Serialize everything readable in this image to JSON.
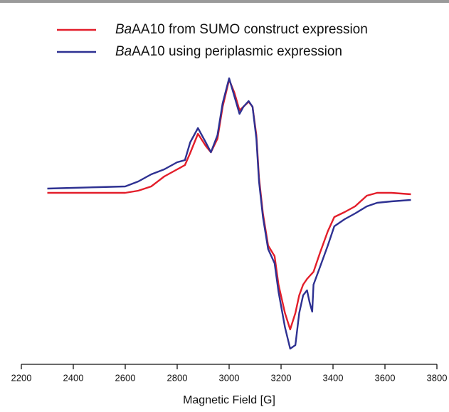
{
  "chart_data": {
    "type": "line",
    "xlabel": "Magnetic Field [G]",
    "xlim": [
      2200,
      3800
    ],
    "xticks": [
      2200,
      2400,
      2600,
      2800,
      3000,
      3200,
      3400,
      3600,
      3800
    ],
    "ylim": [
      -250,
      170
    ],
    "x": [
      2300,
      2400,
      2500,
      2600,
      2650,
      2700,
      2750,
      2800,
      2830,
      2850,
      2880,
      2910,
      2930,
      2955,
      2975,
      3000,
      3020,
      3040,
      3055,
      3075,
      3090,
      3105,
      3115,
      3130,
      3150,
      3175,
      3190,
      3215,
      3235,
      3255,
      3270,
      3285,
      3300,
      3310,
      3320,
      3325,
      3350,
      3380,
      3405,
      3445,
      3485,
      3530,
      3570,
      3625,
      3700
    ],
    "series": [
      {
        "name": "BaAA10 from SUMO construct expression",
        "color": "#e31e2a",
        "values": [
          -1,
          -1,
          -1,
          -1,
          2,
          8,
          22,
          32,
          38,
          55,
          82,
          65,
          56,
          75,
          120,
          158,
          140,
          115,
          120,
          127,
          120,
          80,
          20,
          -30,
          -75,
          -90,
          -130,
          -170,
          -193,
          -170,
          -145,
          -130,
          -122,
          -118,
          -114,
          -112,
          -85,
          -55,
          -35,
          -28,
          -20,
          -5,
          -1,
          -1,
          -3
        ]
      },
      {
        "name": "BaAA10 using periplasmic expression",
        "color": "#2e3192",
        "values": [
          5,
          6,
          7,
          8,
          15,
          25,
          32,
          42,
          45,
          70,
          90,
          70,
          56,
          80,
          125,
          160,
          135,
          110,
          120,
          128,
          120,
          75,
          15,
          -35,
          -80,
          -100,
          -140,
          -190,
          -220,
          -215,
          -170,
          -145,
          -138,
          -155,
          -168,
          -130,
          -105,
          -75,
          -48,
          -38,
          -30,
          -20,
          -15,
          -13,
          -11
        ]
      }
    ]
  }
}
